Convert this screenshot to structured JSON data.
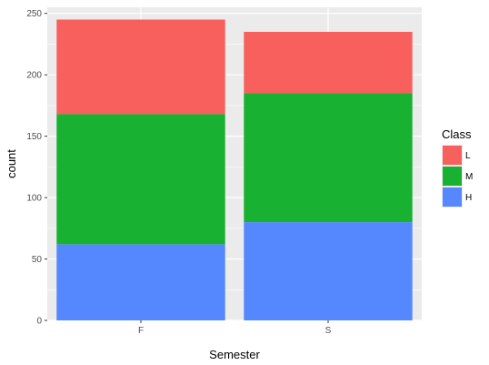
{
  "chart_data": {
    "type": "bar",
    "stacked": true,
    "categories": [
      "F",
      "S"
    ],
    "series": [
      {
        "name": "H",
        "values": [
          62,
          80
        ],
        "color": "#5588FF"
      },
      {
        "name": "M",
        "values": [
          106,
          105
        ],
        "color": "#19B132"
      },
      {
        "name": "L",
        "values": [
          77,
          50
        ],
        "color": "#F8605E"
      }
    ],
    "xlabel": "Semester",
    "ylabel": "count",
    "ylim": [
      0,
      255
    ],
    "yticks": [
      0,
      50,
      100,
      150,
      200,
      250
    ],
    "grid": true,
    "legend": {
      "title": "Class",
      "placement": "right",
      "order": [
        "L",
        "M",
        "H"
      ]
    },
    "panel_background": "#EBEBEB",
    "grid_color": "#FFFFFF"
  }
}
